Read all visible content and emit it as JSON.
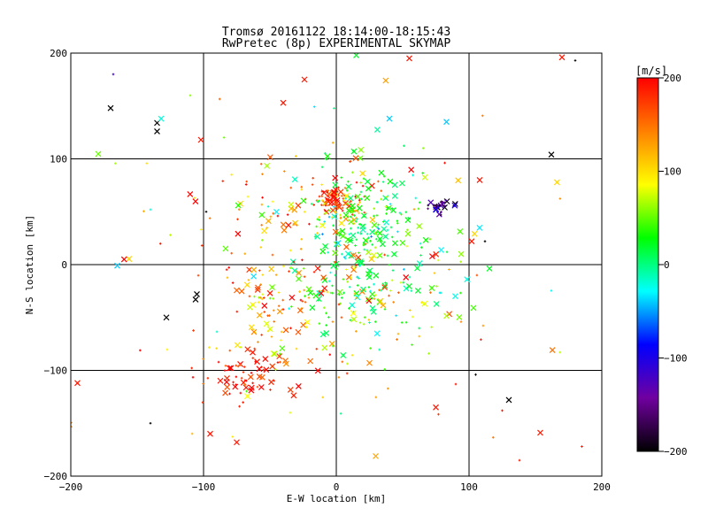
{
  "chart_data": {
    "type": "scatter",
    "title": "Tromsø 20161122 18:14:00-18:15:43",
    "subtitle": "RwPretec (8p) EXPERIMENTAL SKYMAP",
    "xlabel": "E-W location [km]",
    "ylabel": "N-S location [km]",
    "xlim": [
      -200,
      200
    ],
    "ylim": [
      -200,
      200
    ],
    "xticks": [
      -200,
      -100,
      0,
      100,
      200
    ],
    "yticks": [
      -200,
      -100,
      0,
      100,
      200
    ],
    "grid": true,
    "colorbar": {
      "label": "[m/s]",
      "range": [
        -200,
        200
      ],
      "ticks": [
        200,
        100,
        0,
        -100,
        -200
      ],
      "colors": [
        "#000000",
        "#7000a0",
        "#0000ff",
        "#00ffff",
        "#00ff00",
        "#ffff00",
        "#ff8000",
        "#ff0000"
      ]
    },
    "clusters": [
      {
        "x": 0,
        "y": 63,
        "sx": 8,
        "sy": 6,
        "n": 70,
        "v": 180,
        "sv": 30
      },
      {
        "x": 8,
        "y": 48,
        "sx": 6,
        "sy": 6,
        "n": 20,
        "v": 90,
        "sv": 40
      },
      {
        "x": 80,
        "y": 56,
        "sx": 6,
        "sy": 4,
        "n": 28,
        "v": -150,
        "sv": 40
      },
      {
        "x": 15,
        "y": 15,
        "sx": 18,
        "sy": 35,
        "n": 150,
        "v": 20,
        "sv": 30
      },
      {
        "x": 30,
        "y": 45,
        "sx": 25,
        "sy": 45,
        "n": 110,
        "v": 15,
        "sv": 30
      },
      {
        "x": -70,
        "y": -105,
        "sx": 15,
        "sy": 12,
        "n": 55,
        "v": 190,
        "sv": 20
      },
      {
        "x": -55,
        "y": -60,
        "sx": 20,
        "sy": 30,
        "n": 60,
        "v": 130,
        "sv": 50
      },
      {
        "x": -35,
        "y": -20,
        "sx": 30,
        "sy": 40,
        "n": 60,
        "v": 150,
        "sv": 50
      },
      {
        "x": -40,
        "y": 50,
        "sx": 45,
        "sy": 35,
        "n": 70,
        "v": 140,
        "sv": 50
      },
      {
        "x": 20,
        "y": -50,
        "sx": 35,
        "sy": 25,
        "n": 50,
        "v": 110,
        "sv": 60
      },
      {
        "x": 45,
        "y": -20,
        "sx": 35,
        "sy": 35,
        "n": 40,
        "v": 40,
        "sv": 60
      },
      {
        "x": 10,
        "y": 0,
        "sx": 120,
        "sy": 100,
        "n": 80,
        "v": 120,
        "sv": 70
      }
    ],
    "isolated_points": [
      {
        "x": -170,
        "y": 148,
        "v": -200,
        "m": "x"
      },
      {
        "x": -135,
        "y": 134,
        "v": -200,
        "m": "x"
      },
      {
        "x": -135,
        "y": 126,
        "v": -200,
        "m": "x"
      },
      {
        "x": -132,
        "y": 138,
        "v": -20,
        "m": "x"
      },
      {
        "x": -168,
        "y": 180,
        "v": -120,
        "m": "+"
      },
      {
        "x": 162,
        "y": 104,
        "v": -200,
        "m": "x"
      },
      {
        "x": 170,
        "y": 196,
        "v": 190,
        "m": "x"
      },
      {
        "x": 180,
        "y": 193,
        "v": -200,
        "m": "+"
      },
      {
        "x": 130,
        "y": -128,
        "v": -200,
        "m": "x"
      },
      {
        "x": -128,
        "y": -50,
        "v": -200,
        "m": "x"
      },
      {
        "x": -105,
        "y": -28,
        "v": -200,
        "m": "x"
      },
      {
        "x": -106,
        "y": -33,
        "v": -200,
        "m": "x"
      },
      {
        "x": -165,
        "y": -1,
        "v": -40,
        "m": "x"
      },
      {
        "x": -195,
        "y": -112,
        "v": 190,
        "m": "x"
      },
      {
        "x": -140,
        "y": -150,
        "v": -200,
        "m": "+"
      },
      {
        "x": -95,
        "y": -160,
        "v": 190,
        "m": "x"
      },
      {
        "x": -75,
        "y": -168,
        "v": 190,
        "m": "x"
      },
      {
        "x": 75,
        "y": -135,
        "v": 190,
        "m": "x"
      },
      {
        "x": 138,
        "y": -185,
        "v": 190,
        "m": "+"
      },
      {
        "x": 185,
        "y": -172,
        "v": 190,
        "m": "+"
      },
      {
        "x": 105,
        "y": -104,
        "v": -200,
        "m": "+"
      },
      {
        "x": 125,
        "y": -138,
        "v": 190,
        "m": "+"
      },
      {
        "x": -110,
        "y": 160,
        "v": 60,
        "m": "+"
      },
      {
        "x": -102,
        "y": 118,
        "v": 190,
        "m": "x"
      },
      {
        "x": -40,
        "y": 153,
        "v": 190,
        "m": "x"
      },
      {
        "x": -24,
        "y": 175,
        "v": 190,
        "m": "x"
      },
      {
        "x": -125,
        "y": 28,
        "v": 70,
        "m": "+"
      },
      {
        "x": -140,
        "y": 52,
        "v": -20,
        "m": "+"
      },
      {
        "x": 40,
        "y": 138,
        "v": -40,
        "m": "x"
      },
      {
        "x": 83,
        "y": 135,
        "v": -40,
        "m": "x"
      },
      {
        "x": 108,
        "y": 80,
        "v": 190,
        "m": "x"
      },
      {
        "x": 102,
        "y": 22,
        "v": 190,
        "m": "x"
      },
      {
        "x": 112,
        "y": 22,
        "v": -200,
        "m": "+"
      },
      {
        "x": 55,
        "y": 195,
        "v": 190,
        "m": "x"
      },
      {
        "x": 15,
        "y": 198,
        "v": 20,
        "m": "x"
      },
      {
        "x": -98,
        "y": 50,
        "v": -200,
        "m": "+"
      },
      {
        "x": 25,
        "y": -93,
        "v": 140,
        "m": "x"
      },
      {
        "x": 90,
        "y": -113,
        "v": 190,
        "m": "+"
      }
    ]
  }
}
